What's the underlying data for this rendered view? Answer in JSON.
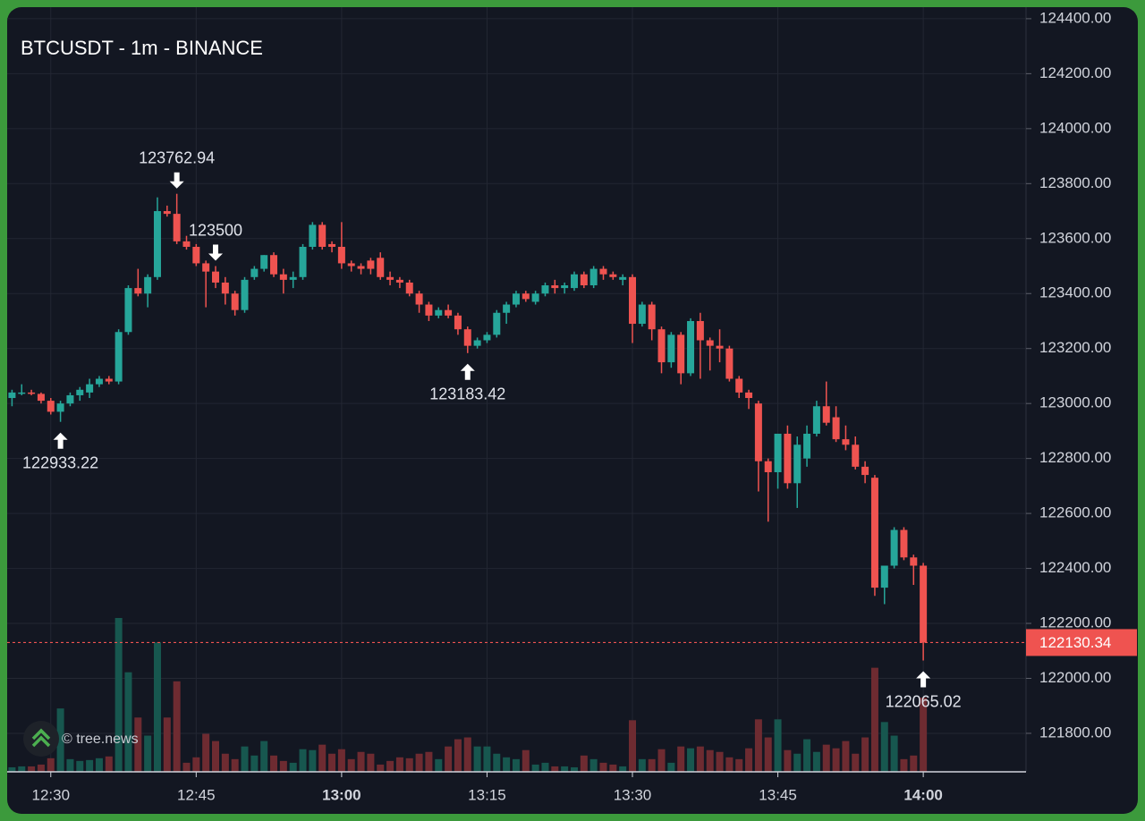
{
  "chart_data": {
    "type": "candlestick",
    "title": "BTCUSDT - 1m - BINANCE",
    "watermark": "© tree.news",
    "up_color": "#26a69a",
    "down_color": "#ef5350",
    "volume_up_color": "#17574f",
    "volume_down_color": "#6e2b31",
    "grid": true,
    "ylim": [
      121660,
      124442
    ],
    "yticks": [
      {
        "value": 121800,
        "label": "121800.00"
      },
      {
        "value": 122000,
        "label": "122000.00"
      },
      {
        "value": 122200,
        "label": "122200.00"
      },
      {
        "value": 122400,
        "label": "122400.00"
      },
      {
        "value": 122600,
        "label": "122600.00"
      },
      {
        "value": 122800,
        "label": "122800.00"
      },
      {
        "value": 123000,
        "label": "123000.00"
      },
      {
        "value": 123200,
        "label": "123200.00"
      },
      {
        "value": 123400,
        "label": "123400.00"
      },
      {
        "value": 123600,
        "label": "123600.00"
      },
      {
        "value": 123800,
        "label": "123800.00"
      },
      {
        "value": 124000,
        "label": "124000.00"
      },
      {
        "value": 124200,
        "label": "124200.00"
      },
      {
        "value": 124400,
        "label": "124400.00"
      }
    ],
    "xlim": [
      -0.5,
      104.6
    ],
    "xticks": [
      {
        "value": 4,
        "label": "12:30"
      },
      {
        "value": 19,
        "label": "12:45"
      },
      {
        "value": 34,
        "label": "13:00",
        "bold": true
      },
      {
        "value": 49,
        "label": "13:15"
      },
      {
        "value": 64,
        "label": "13:30"
      },
      {
        "value": 79,
        "label": "13:45"
      },
      {
        "value": 94,
        "label": "14:00",
        "bold": true
      }
    ],
    "last_price": 122130.34,
    "annotations": [
      {
        "value": 122933.22,
        "kind": "low"
      },
      {
        "value": 123762.94,
        "kind": "high"
      },
      {
        "value": 123183.42,
        "kind": "low"
      },
      {
        "value": 123500.0,
        "kind": "high"
      },
      {
        "value": 122065.02,
        "kind": "low"
      }
    ],
    "ohlc": [
      [
        123020,
        123050,
        122990,
        123040
      ],
      [
        123040,
        123070,
        123030,
        123040
      ],
      [
        123040,
        123050,
        123030,
        123035
      ],
      [
        123035,
        123040,
        123000,
        123010
      ],
      [
        123010,
        123020,
        122960,
        122970
      ],
      [
        122970,
        123010,
        122933.22,
        123000
      ],
      [
        123000,
        123040,
        122990,
        123030
      ],
      [
        123030,
        123060,
        123010,
        123050
      ],
      [
        123040,
        123090,
        123020,
        123070
      ],
      [
        123070,
        123100,
        123060,
        123090
      ],
      [
        123090,
        123100,
        123070,
        123080
      ],
      [
        123080,
        123270,
        123070,
        123260
      ],
      [
        123260,
        123430,
        123250,
        123420
      ],
      [
        123420,
        123490,
        123390,
        123400
      ],
      [
        123400,
        123470,
        123350,
        123460
      ],
      [
        123460,
        123750,
        123450,
        123700
      ],
      [
        123700,
        123720,
        123680,
        123690
      ],
      [
        123690,
        123762.94,
        123580,
        123590
      ],
      [
        123590,
        123610,
        123560,
        123570
      ],
      [
        123570,
        123580,
        123500,
        123510
      ],
      [
        123510,
        123520,
        123350,
        123480
      ],
      [
        123480,
        123500,
        123420,
        123440
      ],
      [
        123440,
        123460,
        123360,
        123400
      ],
      [
        123400,
        123410,
        123320,
        123340
      ],
      [
        123340,
        123460,
        123330,
        123450
      ],
      [
        123460,
        123500,
        123450,
        123490
      ],
      [
        123490,
        123540,
        123480,
        123540
      ],
      [
        123540,
        123550,
        123460,
        123470
      ],
      [
        123470,
        123490,
        123400,
        123450
      ],
      [
        123450,
        123480,
        123420,
        123460
      ],
      [
        123460,
        123580,
        123450,
        123570
      ],
      [
        123570,
        123660,
        123560,
        123650
      ],
      [
        123650,
        123660,
        123560,
        123570
      ],
      [
        123580,
        123590,
        123550,
        123570
      ],
      [
        123570,
        123660,
        123490,
        123510
      ],
      [
        123510,
        123520,
        123480,
        123500
      ],
      [
        123500,
        123510,
        123470,
        123490
      ],
      [
        123520,
        123530,
        123470,
        123490
      ],
      [
        123530,
        123550,
        123450,
        123460
      ],
      [
        123460,
        123480,
        123430,
        123450
      ],
      [
        123450,
        123460,
        123420,
        123440
      ],
      [
        123440,
        123450,
        123390,
        123400
      ],
      [
        123400,
        123410,
        123330,
        123360
      ],
      [
        123360,
        123370,
        123300,
        123320
      ],
      [
        123320,
        123350,
        123310,
        123340
      ],
      [
        123340,
        123360,
        123310,
        123320
      ],
      [
        123320,
        123330,
        123250,
        123270
      ],
      [
        123270,
        123280,
        123183.42,
        123210
      ],
      [
        123210,
        123240,
        123200,
        123230
      ],
      [
        123230,
        123260,
        123220,
        123250
      ],
      [
        123250,
        123340,
        123240,
        123330
      ],
      [
        123330,
        123370,
        123290,
        123360
      ],
      [
        123360,
        123410,
        123350,
        123400
      ],
      [
        123400,
        123410,
        123370,
        123380
      ],
      [
        123370,
        123410,
        123360,
        123400
      ],
      [
        123400,
        123440,
        123390,
        123430
      ],
      [
        123430,
        123450,
        123400,
        123420
      ],
      [
        123420,
        123440,
        123400,
        123430
      ],
      [
        123420,
        123480,
        123410,
        123470
      ],
      [
        123470,
        123480,
        123420,
        123430
      ],
      [
        123430,
        123500,
        123420,
        123490
      ],
      [
        123490,
        123500,
        123450,
        123470
      ],
      [
        123470,
        123480,
        123450,
        123460
      ],
      [
        123450,
        123470,
        123430,
        123460
      ],
      [
        123460,
        123470,
        123220,
        123290
      ],
      [
        123290,
        123370,
        123280,
        123360
      ],
      [
        123360,
        123370,
        123230,
        123270
      ],
      [
        123270,
        123280,
        123110,
        123150
      ],
      [
        123150,
        123260,
        123130,
        123250
      ],
      [
        123250,
        123260,
        123070,
        123110
      ],
      [
        123110,
        123310,
        123100,
        123300
      ],
      [
        123300,
        123330,
        123090,
        123230
      ],
      [
        123230,
        123240,
        123120,
        123210
      ],
      [
        123210,
        123270,
        123150,
        123200
      ],
      [
        123200,
        123210,
        123080,
        123090
      ],
      [
        123090,
        123100,
        123020,
        123040
      ],
      [
        123040,
        123050,
        122980,
        123020
      ],
      [
        123000,
        123010,
        122680,
        122790
      ],
      [
        122790,
        122800,
        122570,
        122750
      ],
      [
        122750,
        122890,
        122690,
        122890
      ],
      [
        122890,
        122920,
        122690,
        122710
      ],
      [
        122710,
        122880,
        122620,
        122850
      ],
      [
        122800,
        122920,
        122770,
        122890
      ],
      [
        122890,
        123010,
        122880,
        122990
      ],
      [
        122990,
        123080,
        122920,
        122930
      ],
      [
        122950,
        122990,
        122860,
        122870
      ],
      [
        122870,
        122920,
        122830,
        122850
      ],
      [
        122850,
        122880,
        122760,
        122770
      ],
      [
        122770,
        122790,
        122710,
        122740
      ],
      [
        122730,
        122740,
        122300,
        122330
      ],
      [
        122330,
        122410,
        122270,
        122410
      ],
      [
        122410,
        122550,
        122400,
        122540
      ],
      [
        122540,
        122550,
        122430,
        122440
      ],
      [
        122440,
        122450,
        122340,
        122410
      ],
      [
        122410,
        122420,
        122065.02,
        122130.34
      ]
    ],
    "volume": [
      5,
      6,
      6,
      8,
      15,
      70,
      14,
      12,
      13,
      15,
      17,
      170,
      110,
      60,
      40,
      143,
      60,
      100,
      10,
      16,
      42,
      34,
      20,
      14,
      28,
      18,
      34,
      18,
      12,
      10,
      25,
      24,
      30,
      20,
      25,
      14,
      22,
      20,
      8,
      12,
      16,
      15,
      20,
      22,
      14,
      28,
      36,
      38,
      28,
      28,
      20,
      16,
      14,
      24,
      8,
      10,
      6,
      6,
      5,
      18,
      14,
      10,
      8,
      6,
      57,
      14,
      14,
      25,
      10,
      28,
      26,
      28,
      24,
      22,
      16,
      14,
      26,
      58,
      38,
      58,
      24,
      20,
      36,
      22,
      30,
      26,
      34,
      20,
      38,
      115,
      55,
      40,
      14,
      18,
      82
    ]
  }
}
